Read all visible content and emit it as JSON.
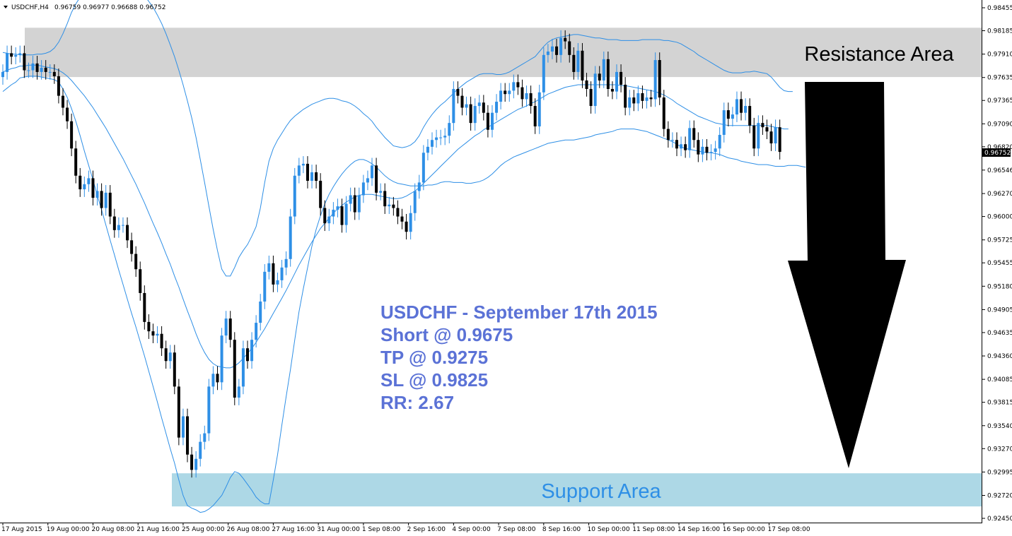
{
  "header": {
    "symbol": "USDCHF,H4",
    "ohlc": "0.96759 0.96977 0.96688 0.96752"
  },
  "chart_data": {
    "type": "candlestick",
    "ylim": [
      0.9245,
      0.98455
    ],
    "y_ticks": [
      "0.98455",
      "0.98185",
      "0.97910",
      "0.97635",
      "0.97365",
      "0.97090",
      "0.96820",
      "0.96546",
      "0.96270",
      "0.96000",
      "0.95725",
      "0.95455",
      "0.95180",
      "0.94905",
      "0.94635",
      "0.94360",
      "0.94085",
      "0.93815",
      "0.93540",
      "0.93270",
      "0.92995",
      "0.92720",
      "0.92450"
    ],
    "x_ticks": [
      "17 Aug 2015",
      "19 Aug 00:00",
      "20 Aug 08:00",
      "21 Aug 16:00",
      "25 Aug 00:00",
      "26 Aug 08:00",
      "27 Aug 16:00",
      "31 Aug 00:00",
      "1 Sep 08:00",
      "2 Sep 16:00",
      "4 Sep 00:00",
      "7 Sep 08:00",
      "8 Sep 16:00",
      "10 Sep 00:00",
      "11 Sep 08:00",
      "14 Sep 16:00",
      "16 Sep 00:00",
      "17 Sep 08:00"
    ],
    "current_price": "0.96752",
    "bull_color": "#2e8fe6",
    "bear_color": "#000000",
    "bands_color": "#2e8fe6",
    "close": [
      0.977,
      0.9792,
      0.9788,
      0.979,
      0.9792,
      0.9772,
      0.9772,
      0.978,
      0.977,
      0.9775,
      0.977,
      0.977,
      0.9765,
      0.9742,
      0.9728,
      0.9712,
      0.968,
      0.9648,
      0.9632,
      0.9638,
      0.9645,
      0.9622,
      0.963,
      0.961,
      0.9628,
      0.96,
      0.9584,
      0.959,
      0.959,
      0.9572,
      0.9556,
      0.9538,
      0.951,
      0.9476,
      0.9465,
      0.946,
      0.9462,
      0.9445,
      0.943,
      0.944,
      0.94,
      0.934,
      0.9365,
      0.932,
      0.9302,
      0.9315,
      0.9335,
      0.9345,
      0.94,
      0.9415,
      0.9405,
      0.946,
      0.948,
      0.9455,
      0.9387,
      0.94,
      0.9445,
      0.943,
      0.9455,
      0.9475,
      0.95,
      0.9535,
      0.9545,
      0.952,
      0.9525,
      0.954,
      0.955,
      0.96,
      0.9648,
      0.966,
      0.9662,
      0.9642,
      0.9652,
      0.9642,
      0.961,
      0.9592,
      0.96,
      0.9608,
      0.9612,
      0.959,
      0.9615,
      0.9625,
      0.9605,
      0.9625,
      0.964,
      0.9645,
      0.966,
      0.9628,
      0.963,
      0.9612,
      0.9614,
      0.961,
      0.96,
      0.9594,
      0.9582,
      0.9604,
      0.963,
      0.964,
      0.9675,
      0.9682,
      0.969,
      0.9693,
      0.9693,
      0.9695,
      0.971,
      0.975,
      0.9742,
      0.9728,
      0.9732,
      0.971,
      0.973,
      0.9734,
      0.9722,
      0.9702,
      0.9722,
      0.9735,
      0.9748,
      0.9744,
      0.9748,
      0.9758,
      0.9752,
      0.9738,
      0.9745,
      0.973,
      0.9706,
      0.9746,
      0.979,
      0.9794,
      0.98,
      0.979,
      0.981,
      0.9806,
      0.979,
      0.977,
      0.9795,
      0.976,
      0.975,
      0.973,
      0.9768,
      0.976,
      0.9785,
      0.975,
      0.9747,
      0.977,
      0.9755,
      0.9728,
      0.974,
      0.9733,
      0.9745,
      0.9736,
      0.974,
      0.9738,
      0.9784,
      0.974,
      0.9703,
      0.969,
      0.969,
      0.968,
      0.9685,
      0.9678,
      0.9704,
      0.969,
      0.9673,
      0.9682,
      0.9675,
      0.9676,
      0.968,
      0.9696,
      0.9725,
      0.9715,
      0.972,
      0.9738,
      0.9722,
      0.973,
      0.9707,
      0.968,
      0.971,
      0.9705,
      0.97,
      0.9686,
      0.9705,
      0.9676
    ],
    "bb_upper": [
      0.9793,
      0.9792,
      0.9791,
      0.9791,
      0.979,
      0.979,
      0.979,
      0.979,
      0.9791,
      0.9791,
      0.9792,
      0.9794,
      0.9798,
      0.9805,
      0.9815,
      0.9827,
      0.984,
      0.985,
      0.9858,
      0.9862,
      0.9865,
      0.9867,
      0.9869,
      0.9871,
      0.9873,
      0.9875,
      0.9876,
      0.9877,
      0.9877,
      0.9876,
      0.9873,
      0.987,
      0.9865,
      0.986,
      0.9853,
      0.9846,
      0.9837,
      0.9827,
      0.9815,
      0.9802,
      0.9788,
      0.9772,
      0.9755,
      0.9736,
      0.9716,
      0.9693,
      0.9667,
      0.964,
      0.9612,
      0.9585,
      0.956,
      0.9538,
      0.953,
      0.953,
      0.954,
      0.9552,
      0.956,
      0.9567,
      0.9577,
      0.9588,
      0.961,
      0.964,
      0.9665,
      0.968,
      0.969,
      0.9698,
      0.9706,
      0.9713,
      0.9718,
      0.9722,
      0.9726,
      0.9729,
      0.9732,
      0.9734,
      0.9736,
      0.9738,
      0.9739,
      0.9739,
      0.9738,
      0.9736,
      0.9735,
      0.9733,
      0.973,
      0.9726,
      0.9721,
      0.9717,
      0.9712,
      0.9705,
      0.9699,
      0.9693,
      0.9688,
      0.9683,
      0.9682,
      0.9681,
      0.9682,
      0.9684,
      0.9688,
      0.9695,
      0.9705,
      0.9713,
      0.972,
      0.9726,
      0.9731,
      0.9735,
      0.974,
      0.9745,
      0.975,
      0.9754,
      0.9758,
      0.9761,
      0.9764,
      0.9767,
      0.9768,
      0.9768,
      0.9768,
      0.9767,
      0.9767,
      0.9768,
      0.977,
      0.9773,
      0.9776,
      0.9779,
      0.9782,
      0.9785,
      0.9788,
      0.9794,
      0.98,
      0.9805,
      0.9808,
      0.981,
      0.9811,
      0.9812,
      0.9813,
      0.9814,
      0.9814,
      0.9813,
      0.9812,
      0.9811,
      0.981,
      0.981,
      0.9809,
      0.9808,
      0.9808,
      0.9808,
      0.9807,
      0.9807,
      0.9807,
      0.9807,
      0.9807,
      0.9808,
      0.9808,
      0.9808,
      0.9808,
      0.9808,
      0.9807,
      0.9807,
      0.9806,
      0.9805,
      0.9803,
      0.98,
      0.9797,
      0.9794,
      0.979,
      0.9787,
      0.9784,
      0.9781,
      0.9778,
      0.9775,
      0.9772,
      0.977,
      0.9769,
      0.9769,
      0.9769,
      0.977,
      0.977,
      0.9771,
      0.977,
      0.9769,
      0.9768,
      0.9764,
      0.9758,
      0.9752,
      0.9748,
      0.9747,
      0.9747
    ],
    "bb_middle": [
      0.977,
      0.9772,
      0.9774,
      0.9775,
      0.9777,
      0.9777,
      0.9778,
      0.9778,
      0.9778,
      0.9777,
      0.9776,
      0.9775,
      0.9774,
      0.9772,
      0.9769,
      0.9765,
      0.976,
      0.9754,
      0.9748,
      0.9742,
      0.9735,
      0.9728,
      0.972,
      0.9712,
      0.9704,
      0.9695,
      0.9686,
      0.9677,
      0.9668,
      0.9658,
      0.9648,
      0.9638,
      0.9627,
      0.9616,
      0.9604,
      0.9592,
      0.9581,
      0.9569,
      0.9556,
      0.9544,
      0.953,
      0.9517,
      0.9503,
      0.9489,
      0.9476,
      0.9462,
      0.945,
      0.944,
      0.9432,
      0.9427,
      0.9424,
      0.9423,
      0.9422,
      0.9422,
      0.9424,
      0.9428,
      0.9433,
      0.9439,
      0.9445,
      0.9452,
      0.946,
      0.9468,
      0.9477,
      0.9486,
      0.9495,
      0.9504,
      0.9513,
      0.9523,
      0.9533,
      0.9543,
      0.9552,
      0.9561,
      0.957,
      0.9578,
      0.9586,
      0.9592,
      0.9598,
      0.9604,
      0.9609,
      0.9613,
      0.9617,
      0.962,
      0.9623,
      0.9625,
      0.9626,
      0.9626,
      0.9626,
      0.9625,
      0.9624,
      0.9623,
      0.9622,
      0.9621,
      0.9621,
      0.9622,
      0.9624,
      0.9627,
      0.963,
      0.9634,
      0.9639,
      0.9644,
      0.9649,
      0.9654,
      0.9659,
      0.9664,
      0.9669,
      0.9674,
      0.9679,
      0.9683,
      0.9687,
      0.9691,
      0.9695,
      0.9698,
      0.9702,
      0.9705,
      0.9708,
      0.9711,
      0.9714,
      0.9717,
      0.972,
      0.9723,
      0.9726,
      0.9728,
      0.973,
      0.9733,
      0.9735,
      0.9738,
      0.9741,
      0.9744,
      0.9746,
      0.9748,
      0.975,
      0.9752,
      0.9753,
      0.9754,
      0.9755,
      0.9755,
      0.9755,
      0.9755,
      0.9755,
      0.9755,
      0.9755,
      0.9755,
      0.9755,
      0.9755,
      0.9754,
      0.9754,
      0.9753,
      0.9752,
      0.9751,
      0.975,
      0.9749,
      0.9748,
      0.9747,
      0.9745,
      0.9743,
      0.974,
      0.9737,
      0.9733,
      0.973,
      0.9727,
      0.9724,
      0.9721,
      0.9718,
      0.9716,
      0.9714,
      0.9712,
      0.971,
      0.9709,
      0.9708,
      0.9707,
      0.9707,
      0.9707,
      0.9707,
      0.9707,
      0.9707,
      0.9707,
      0.9707,
      0.9707,
      0.9707,
      0.9706,
      0.9705,
      0.9704,
      0.9703,
      0.9703
    ],
    "bb_lower": [
      0.9747,
      0.9751,
      0.9755,
      0.9758,
      0.9763,
      0.9764,
      0.9765,
      0.9765,
      0.9765,
      0.9764,
      0.9763,
      0.9762,
      0.9761,
      0.9758,
      0.975,
      0.974,
      0.9727,
      0.9712,
      0.9695,
      0.9677,
      0.966,
      0.9643,
      0.9625,
      0.9608,
      0.959,
      0.9572,
      0.9555,
      0.9537,
      0.952,
      0.9503,
      0.9486,
      0.947,
      0.9453,
      0.9436,
      0.9418,
      0.94,
      0.9382,
      0.9363,
      0.9345,
      0.9327,
      0.931,
      0.929,
      0.9272,
      0.926,
      0.9257,
      0.9255,
      0.9252,
      0.9253,
      0.9256,
      0.926,
      0.9266,
      0.9272,
      0.9282,
      0.9293,
      0.93,
      0.9298,
      0.9292,
      0.9285,
      0.9278,
      0.927,
      0.9265,
      0.9262,
      0.9262,
      0.929,
      0.932,
      0.9355,
      0.9388,
      0.942,
      0.9455,
      0.9488,
      0.9515,
      0.954,
      0.9565,
      0.9585,
      0.9601,
      0.9615,
      0.9626,
      0.9635,
      0.9643,
      0.965,
      0.9656,
      0.9661,
      0.9665,
      0.9667,
      0.9667,
      0.9665,
      0.9662,
      0.9658,
      0.9653,
      0.9648,
      0.9644,
      0.9641,
      0.9639,
      0.9638,
      0.9637,
      0.9636,
      0.9636,
      0.9636,
      0.9636,
      0.9637,
      0.9637,
      0.9638,
      0.964,
      0.9641,
      0.9641,
      0.964,
      0.964,
      0.964,
      0.9639,
      0.9639,
      0.964,
      0.9641,
      0.9643,
      0.9646,
      0.965,
      0.9655,
      0.966,
      0.9664,
      0.9667,
      0.967,
      0.9672,
      0.9674,
      0.9676,
      0.9678,
      0.968,
      0.9682,
      0.9684,
      0.9686,
      0.9687,
      0.9688,
      0.9689,
      0.969,
      0.969,
      0.969,
      0.9691,
      0.9692,
      0.9693,
      0.9694,
      0.9696,
      0.9697,
      0.9698,
      0.9699,
      0.97,
      0.9702,
      0.9703,
      0.9703,
      0.9703,
      0.9703,
      0.9702,
      0.9701,
      0.97,
      0.9698,
      0.9696,
      0.9694,
      0.9692,
      0.969,
      0.9688,
      0.9685,
      0.9682,
      0.968,
      0.9679,
      0.9678,
      0.9677,
      0.9676,
      0.9675,
      0.9675,
      0.9674,
      0.9673,
      0.9671,
      0.9669,
      0.9668,
      0.9667,
      0.9665,
      0.9664,
      0.9663,
      0.9662,
      0.9661,
      0.9661,
      0.9661,
      0.966,
      0.9659,
      0.9659,
      0.9659,
      0.966,
      0.966,
      0.966,
      0.9659,
      0.9658
    ]
  },
  "annotation": {
    "line1": "USDCHF - September 17th 2015",
    "line2": "Short @ 0.9675",
    "line3": "TP @ 0.9275",
    "line4": "SL @ 0.9825",
    "line5": "RR: 2.67",
    "color": "#5b72d6"
  },
  "zones": {
    "resistance": {
      "label": "Resistance Area",
      "from": 0.9764,
      "to": 0.9822,
      "color": "#d3d3d3",
      "text_color": "#000000"
    },
    "support": {
      "label": "Support Area",
      "from": 0.9259,
      "to": 0.9298,
      "color": "#add8e6",
      "text_color": "#2e8fe6"
    }
  },
  "arrow": {
    "direction": "down",
    "color": "#000000"
  }
}
